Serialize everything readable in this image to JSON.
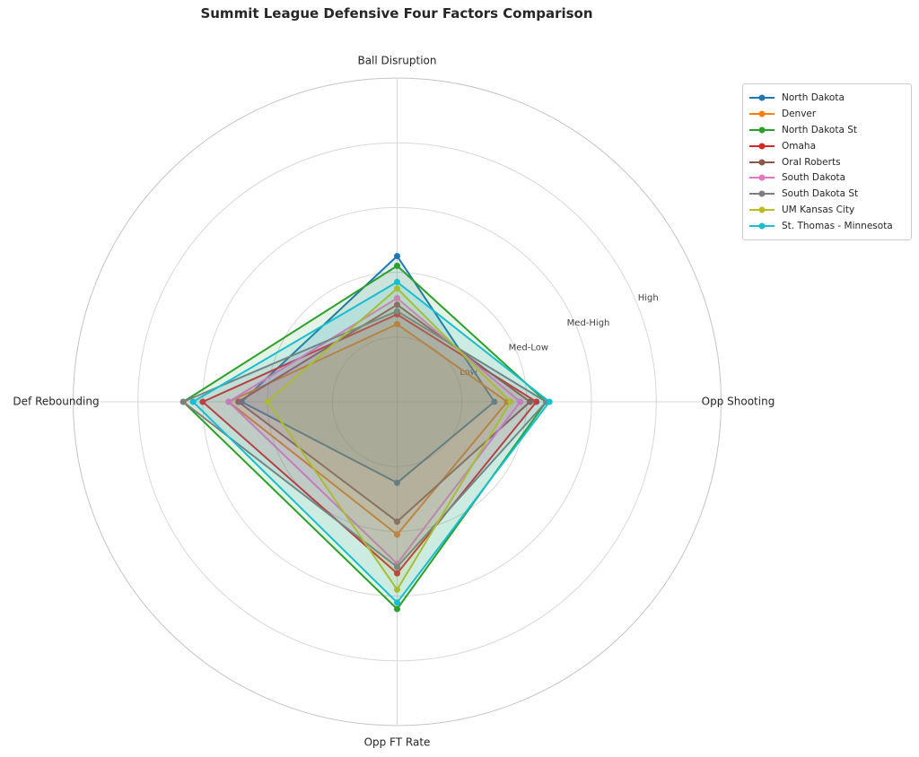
{
  "title": "Summit League Defensive Four Factors Comparison",
  "chart_data": {
    "type": "radar",
    "categories": [
      "Ball Disruption",
      "Opp Shooting",
      "Opp FT Rate",
      "Def Rebounding"
    ],
    "category_angles_deg": [
      -90,
      0,
      90,
      180
    ],
    "radial_ticks": [
      {
        "value": 1,
        "label": "Low"
      },
      {
        "value": 2,
        "label": "Med-Low"
      },
      {
        "value": 3,
        "label": "Med-High"
      },
      {
        "value": 4,
        "label": "High"
      }
    ],
    "r_min": 0,
    "r_max": 5,
    "grid": true,
    "tick_label_angle_deg": -22.5,
    "legend_position": "upper right",
    "fill_opacity": 0.12,
    "grid_color": "#d8d8d8",
    "spine_color": "#c4c4c4",
    "label_color": "#262626",
    "tick_label_color": "#404040",
    "series": [
      {
        "name": "North Dakota",
        "color": "#1f77b4",
        "values": [
          2.25,
          1.5,
          1.25,
          2.4
        ]
      },
      {
        "name": "Denver",
        "color": "#ff7f0e",
        "values": [
          1.2,
          1.7,
          2.05,
          2.6
        ]
      },
      {
        "name": "North Dakota St",
        "color": "#2ca02c",
        "values": [
          2.1,
          2.3,
          3.2,
          3.3
        ]
      },
      {
        "name": "Omaha",
        "color": "#d62728",
        "values": [
          1.35,
          2.15,
          2.65,
          3.0
        ]
      },
      {
        "name": "Oral Roberts",
        "color": "#8c564b",
        "values": [
          1.5,
          2.05,
          1.85,
          2.45
        ]
      },
      {
        "name": "South Dakota",
        "color": "#e377c2",
        "values": [
          1.6,
          1.9,
          2.5,
          2.6
        ]
      },
      {
        "name": "South Dakota St",
        "color": "#7f7f7f",
        "values": [
          1.4,
          2.3,
          2.55,
          3.3
        ]
      },
      {
        "name": "UM Kansas City",
        "color": "#bcbd22",
        "values": [
          1.75,
          1.75,
          2.9,
          2.0
        ]
      },
      {
        "name": "St. Thomas - Minnesota",
        "color": "#17becf",
        "values": [
          1.85,
          2.35,
          3.1,
          3.15
        ]
      }
    ]
  }
}
